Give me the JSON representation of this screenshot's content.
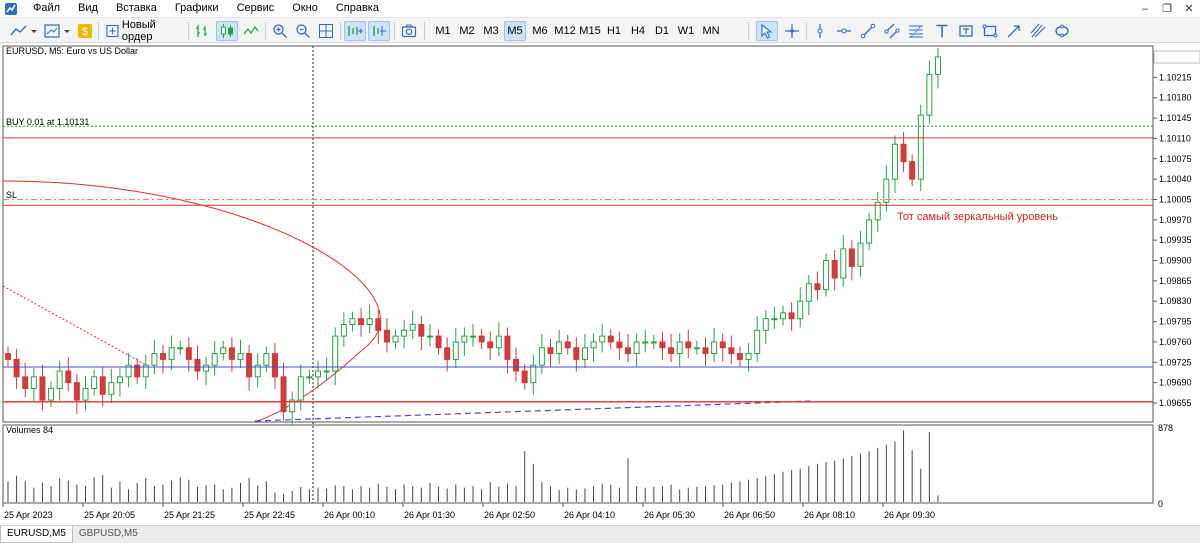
{
  "menu": {
    "items": [
      "Файл",
      "Вид",
      "Вставка",
      "Графики",
      "Сервис",
      "Окно",
      "Справка"
    ]
  },
  "toolbar": {
    "new_order_label": "Новый ордер",
    "timeframes": [
      "M1",
      "M2",
      "M3",
      "M5",
      "M6",
      "M12",
      "M15",
      "H1",
      "H4",
      "D1",
      "W1",
      "MN"
    ],
    "active_timeframe": "M5"
  },
  "chart": {
    "header": "EURUSD, M5:  Euro vs US Dollar",
    "buy_label": "BUY 0.01 at 1.10131",
    "sl_label": "SL",
    "annotation": "Тот самый зеркальный уровень",
    "volume_label": "Volumes 84",
    "volume_axis": [
      "878",
      "0"
    ],
    "price_labels": [
      "1.10250",
      "1.10215",
      "1.10180",
      "1.10145",
      "1.10110",
      "1.10075",
      "1.10040",
      "1.10005",
      "1.09970",
      "1.09935",
      "1.09900",
      "1.09865",
      "1.09830",
      "1.09795",
      "1.09760",
      "1.09725",
      "1.09690",
      "1.09655"
    ],
    "time_labels": [
      "25 Apr 2023",
      "25 Apr 20:05",
      "25 Apr 21:25",
      "25 Apr 22:45",
      "26 Apr 00:10",
      "26 Apr 01:30",
      "26 Apr 02:50",
      "26 Apr 04:10",
      "26 Apr 05:30",
      "26 Apr 06:50",
      "26 Apr 08:10",
      "26 Apr 09:30"
    ],
    "levels": {
      "buy": 1.10131,
      "sl": 1.10005,
      "red_upper": 1.10111,
      "red_mirror": 1.09995,
      "blue": 1.09717,
      "red_lower": 1.09657
    },
    "colors": {
      "bull": "#26a643",
      "bear": "#d23b3b",
      "level_red": "#e03030",
      "level_blue": "#4a4ad9",
      "buy_dotted": "#2e9a2e",
      "sl_dash": "#e8884a",
      "annotation": "#e02020",
      "volume": "#444444"
    }
  },
  "chart_data": {
    "type": "candlestick",
    "series": [
      {
        "name": "EURUSD, M5",
        "close": [
          1.0973,
          1.097,
          1.0968,
          1.097,
          1.0966,
          1.0968,
          1.0971,
          1.0969,
          1.0966,
          1.0968,
          1.097,
          1.0967,
          1.0969,
          1.097,
          1.0972,
          1.097,
          1.0972,
          1.0974,
          1.0973,
          1.0975,
          1.0975,
          1.0973,
          1.0971,
          1.0972,
          1.0974,
          1.0975,
          1.0973,
          1.0974,
          1.097,
          1.0972,
          1.0974,
          1.097,
          1.0964,
          1.0966,
          1.097,
          1.097,
          1.0971,
          1.0971,
          1.0977,
          1.0979,
          1.098,
          1.0979,
          1.098,
          1.0978,
          1.0976,
          1.0977,
          1.0978,
          1.0979,
          1.0977,
          1.0977,
          1.0975,
          1.0973,
          1.0976,
          1.0977,
          1.0977,
          1.0976,
          1.0975,
          1.0977,
          1.0973,
          1.0971,
          1.0969,
          1.0972,
          1.0975,
          1.0974,
          1.0976,
          1.0975,
          1.0973,
          1.0975,
          1.0976,
          1.0977,
          1.0976,
          1.0975,
          1.0974,
          1.0976,
          1.0976,
          1.0976,
          1.0975,
          1.0974,
          1.0976,
          1.0975,
          1.0975,
          1.0974,
          1.0976,
          1.0975,
          1.0974,
          1.0973,
          1.0974,
          1.0978,
          1.098,
          1.098,
          1.0981,
          1.098,
          1.0983,
          1.0986,
          1.0985,
          1.099,
          1.0987,
          1.0992,
          1.0989,
          1.0993,
          1.0997,
          1.1,
          1.1004,
          1.101,
          1.1007,
          1.1004,
          1.1015,
          1.1022,
          1.1025
        ]
      }
    ],
    "x_range": [
      "25 Apr 2023",
      "26 Apr 09:30"
    ],
    "y_range": [
      1.0964,
      1.10275
    ],
    "volume": [
      260,
      330,
      260,
      180,
      240,
      200,
      300,
      270,
      220,
      200,
      310,
      340,
      180,
      260,
      160,
      240,
      300,
      200,
      220,
      270,
      310,
      280,
      190,
      210,
      220,
      160,
      180,
      240,
      300,
      210,
      260,
      120,
      100,
      140,
      190,
      160,
      180,
      170,
      210,
      200,
      160,
      200,
      180,
      230,
      190,
      160,
      220,
      200,
      180,
      240,
      190,
      170,
      220,
      180,
      200,
      160,
      250,
      190,
      230,
      200,
      640,
      480,
      250,
      200,
      150,
      180,
      160,
      170,
      200,
      230,
      220,
      180,
      550,
      200,
      180,
      190,
      200,
      220,
      160,
      180,
      190,
      200,
      210,
      220,
      240,
      260,
      280,
      300,
      330,
      350,
      380,
      400,
      420,
      450,
      480,
      500,
      520,
      550,
      580,
      610,
      640,
      680,
      720,
      760,
      900,
      650,
      420,
      880,
      84
    ]
  },
  "tabs": [
    {
      "label": "EURUSD,M5",
      "active": true
    },
    {
      "label": "GBPUSD,M5",
      "active": false
    }
  ]
}
